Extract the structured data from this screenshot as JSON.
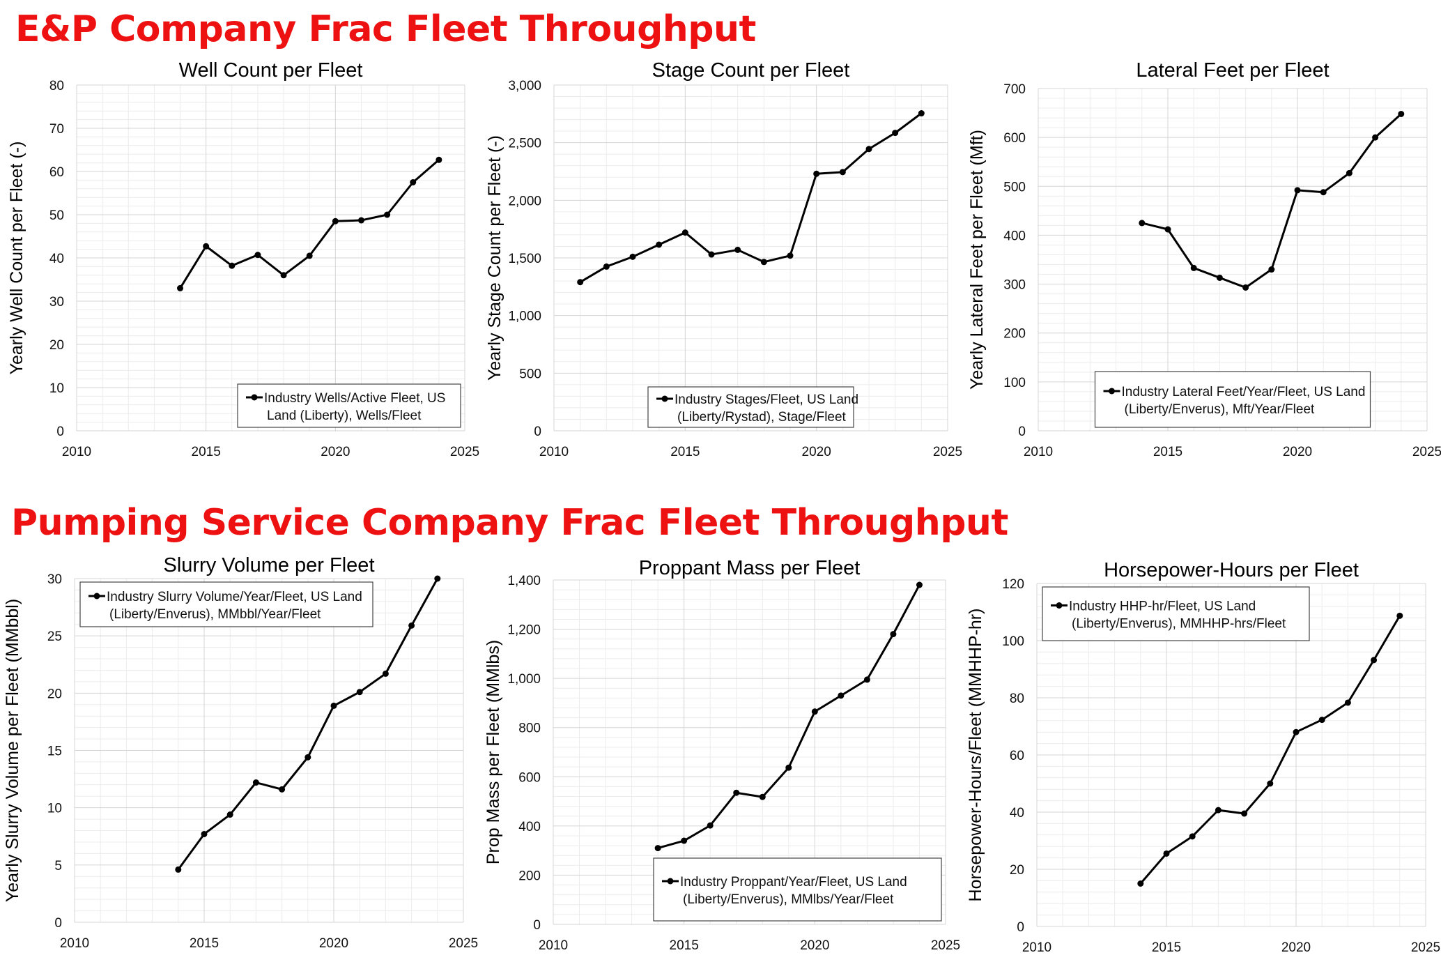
{
  "sections": {
    "top": "E&P Company Frac Fleet Throughput",
    "bottom": "Pumping Service Company Frac Fleet Throughput"
  },
  "chart_data": [
    {
      "type": "line",
      "title": "Well Count per Fleet",
      "xlabel": "",
      "ylabel": "Yearly Well Count per Fleet (-)",
      "xlim": [
        2010,
        2025
      ],
      "ylim": [
        0,
        80
      ],
      "xticks": [
        "2010",
        "2015",
        "2020",
        "2025"
      ],
      "yticks": [
        "0",
        "10",
        "20",
        "30",
        "40",
        "50",
        "60",
        "70",
        "80"
      ],
      "legend": [
        "Industry Wells/Active Fleet, US",
        "Land (Liberty), Wells/Fleet"
      ],
      "legend_position": "bottom-right",
      "series": [
        {
          "name": "Industry Wells/Active Fleet, US Land (Liberty), Wells/Fleet",
          "x": [
            2014,
            2015,
            2016,
            2017,
            2018,
            2019,
            2020,
            2021,
            2022,
            2023,
            2024
          ],
          "y": [
            33,
            42.7,
            38.2,
            40.7,
            36,
            40.5,
            48.5,
            48.7,
            50,
            57.5,
            62.7
          ]
        }
      ]
    },
    {
      "type": "line",
      "title": "Stage Count per Fleet",
      "xlabel": "",
      "ylabel": "Yearly Stage Count per Fleet (-)",
      "xlim": [
        2010,
        2025
      ],
      "ylim": [
        0,
        3000
      ],
      "xticks": [
        "2010",
        "2015",
        "2020",
        "2025"
      ],
      "yticks": [
        "0",
        "500",
        "1,000",
        "1,500",
        "2,000",
        "2,500",
        "3,000"
      ],
      "legend": [
        "Industry Stages/Fleet, US Land",
        "(Liberty/Rystad), Stage/Fleet"
      ],
      "legend_position": "bottom-center",
      "series": [
        {
          "name": "Industry Stages/Fleet, US Land (Liberty/Rystad), Stage/Fleet",
          "x": [
            2011,
            2012,
            2013,
            2014,
            2015,
            2016,
            2017,
            2018,
            2019,
            2020,
            2021,
            2022,
            2023,
            2024
          ],
          "y": [
            1290,
            1425,
            1510,
            1615,
            1720,
            1530,
            1570,
            1465,
            1520,
            2230,
            2245,
            2445,
            2585,
            2755
          ]
        }
      ]
    },
    {
      "type": "line",
      "title": "Lateral Feet per Fleet",
      "xlabel": "",
      "ylabel": "Yearly Lateral Feet per Fleet (Mft)",
      "xlim": [
        2010,
        2025
      ],
      "ylim": [
        0,
        700
      ],
      "xticks": [
        "2010",
        "2015",
        "2020",
        "2025"
      ],
      "yticks": [
        "0",
        "100",
        "200",
        "300",
        "400",
        "500",
        "600",
        "700"
      ],
      "legend": [
        "Industry Lateral Feet/Year/Fleet, US Land",
        "(Liberty/Enverus), Mft/Year/Fleet"
      ],
      "legend_position": "bottom-center",
      "series": [
        {
          "name": "Industry Lateral Feet/Year/Fleet, US Land (Liberty/Enverus), Mft/Year/Fleet",
          "x": [
            2014,
            2015,
            2016,
            2017,
            2018,
            2019,
            2020,
            2021,
            2022,
            2023,
            2024
          ],
          "y": [
            425,
            412,
            333,
            313,
            293,
            330,
            492,
            488,
            527,
            600,
            648
          ]
        }
      ]
    },
    {
      "type": "line",
      "title": "Slurry Volume per Fleet",
      "xlabel": "",
      "ylabel": "Yearly Slurry Volume per Fleet (MMbbl)",
      "xlim": [
        2010,
        2025
      ],
      "ylim": [
        0,
        30
      ],
      "xticks": [
        "2010",
        "2015",
        "2020",
        "2025"
      ],
      "yticks": [
        "0",
        "5",
        "10",
        "15",
        "20",
        "25",
        "30"
      ],
      "legend": [
        "Industry Slurry Volume/Year/Fleet, US Land",
        "(Liberty/Enverus), MMbbl/Year/Fleet"
      ],
      "legend_position": "top-left",
      "series": [
        {
          "name": "Industry Slurry Volume/Year/Fleet, US Land (Liberty/Enverus), MMbbl/Year/Fleet",
          "x": [
            2014,
            2015,
            2016,
            2017,
            2018,
            2019,
            2020,
            2021,
            2022,
            2023,
            2024
          ],
          "y": [
            4.6,
            7.7,
            9.4,
            12.2,
            11.6,
            14.4,
            18.9,
            20.1,
            21.7,
            25.9,
            30
          ]
        }
      ]
    },
    {
      "type": "line",
      "title": "Proppant Mass per Fleet",
      "xlabel": "",
      "ylabel": "Prop Mass per Fleet (MMlbs)",
      "xlim": [
        2010,
        2025
      ],
      "ylim": [
        0,
        1400
      ],
      "xticks": [
        "2010",
        "2015",
        "2020",
        "2025"
      ],
      "yticks": [
        "0",
        "200",
        "400",
        "600",
        "800",
        "1,000",
        "1,200",
        "1,400"
      ],
      "legend": [
        "Industry Proppant/Year/Fleet, US Land",
        "(Liberty/Enverus), MMlbs/Year/Fleet"
      ],
      "legend_position": "bottom-right",
      "series": [
        {
          "name": "Industry Proppant/Year/Fleet, US Land (Liberty/Enverus), MMlbs/Year/Fleet",
          "x": [
            2014,
            2015,
            2016,
            2017,
            2018,
            2019,
            2020,
            2021,
            2022,
            2023,
            2024
          ],
          "y": [
            310,
            340,
            402,
            535,
            518,
            637,
            865,
            930,
            995,
            1180,
            1380
          ]
        }
      ]
    },
    {
      "type": "line",
      "title": "Horsepower-Hours per Fleet",
      "xlabel": "",
      "ylabel": "Horsepower-Hours/Fleet (MMHHP-hr)",
      "xlim": [
        2010,
        2025
      ],
      "ylim": [
        0,
        120
      ],
      "xticks": [
        "2010",
        "2015",
        "2020",
        "2025"
      ],
      "yticks": [
        "0",
        "20",
        "40",
        "60",
        "80",
        "100",
        "120"
      ],
      "legend": [
        "Industry HHP-hr/Fleet, US Land",
        "(Liberty/Enverus), MMHHP-hrs/Fleet"
      ],
      "legend_position": "top-left",
      "series": [
        {
          "name": "Industry HHP-hr/Fleet, US Land (Liberty/Enverus), MMHHP-hrs/Fleet",
          "x": [
            2014,
            2015,
            2016,
            2017,
            2018,
            2019,
            2020,
            2021,
            2022,
            2023,
            2024
          ],
          "y": [
            15,
            25.5,
            31.5,
            40.7,
            39.5,
            50,
            68,
            72.3,
            78.3,
            93.2,
            108.7
          ]
        }
      ]
    }
  ]
}
